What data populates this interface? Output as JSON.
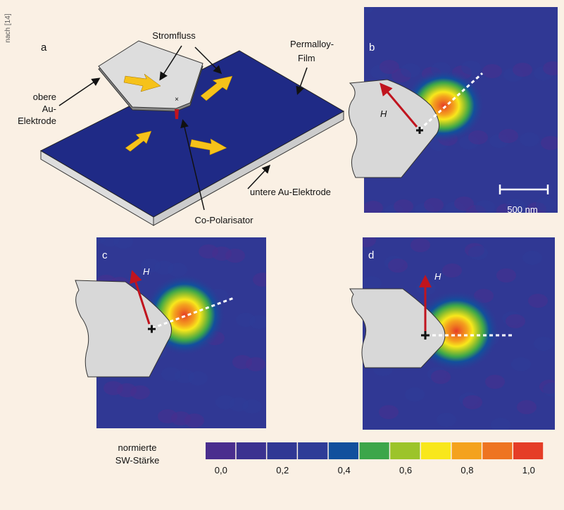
{
  "source_note": "nach [14]",
  "panel_a": {
    "label": "a",
    "current": "Stromfluss",
    "film": [
      "Permalloy-",
      "Film"
    ],
    "top_electrode": [
      "obere",
      "Au-",
      "Elektrode"
    ],
    "bottom_electrode": "untere Au-Elektrode",
    "polarizer": "Co-Polarisator"
  },
  "panel_b": {
    "label": "b",
    "field": "H",
    "scale": "500 nm"
  },
  "panel_c": {
    "label": "c",
    "field": "H"
  },
  "panel_d": {
    "label": "d",
    "field": "H"
  },
  "colorbar": {
    "title": [
      "normierte",
      "SW-Stärke"
    ],
    "colors": [
      "#4a2e8e",
      "#3b3290",
      "#303894",
      "#2e3c97",
      "#11509d",
      "#3ca64a",
      "#9cc42a",
      "#f8e71c",
      "#f4a21e",
      "#ee7421",
      "#e53d27"
    ],
    "labels": [
      "0,0",
      "0,2",
      "0,4",
      "0,6",
      "0,8",
      "1,0"
    ]
  }
}
